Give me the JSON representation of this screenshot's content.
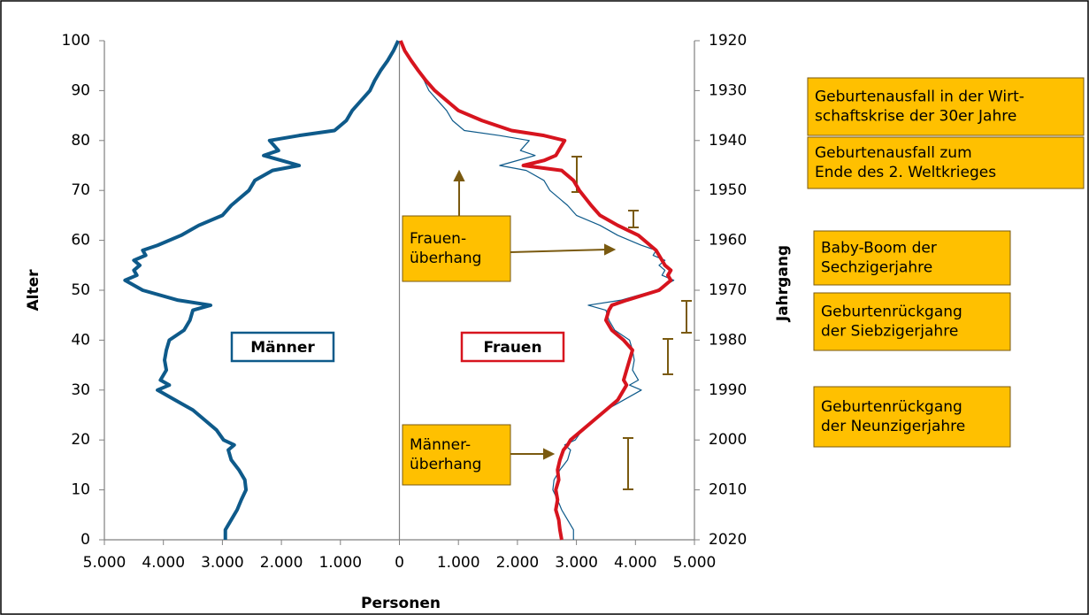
{
  "chart_data": {
    "type": "pyramid",
    "x_label": "Personen",
    "y_label": "Alter",
    "y2_label": "Jahrgang",
    "xlim": [
      -5000,
      5000
    ],
    "xticks": [
      {
        "value": -5000,
        "label": "5.000"
      },
      {
        "value": -4000,
        "label": "4.000"
      },
      {
        "value": -3000,
        "label": "3.000"
      },
      {
        "value": -2000,
        "label": "2.000"
      },
      {
        "value": -1000,
        "label": "1.000"
      },
      0,
      {
        "value": 1000,
        "label": "1.000"
      },
      {
        "value": 2000,
        "label": "2.000"
      },
      {
        "value": 3000,
        "label": "3.000"
      },
      {
        "value": 4000,
        "label": "4.000"
      },
      {
        "value": 5000,
        "label": "5.000"
      }
    ],
    "ylim": [
      0,
      100
    ],
    "yticks": [
      0,
      10,
      20,
      30,
      40,
      50,
      60,
      70,
      80,
      90,
      100
    ],
    "y2lim": [
      2020,
      1920
    ],
    "y2ticks": [
      1920,
      1930,
      1940,
      1950,
      1960,
      1970,
      1980,
      1990,
      2000,
      2010,
      2020
    ],
    "ages": [
      0,
      2,
      4,
      6,
      8,
      10,
      12,
      14,
      16,
      18,
      19,
      20,
      22,
      24,
      26,
      28,
      30,
      31,
      32,
      34,
      36,
      38,
      40,
      42,
      44,
      46,
      47,
      48,
      50,
      52,
      53,
      54,
      55,
      56,
      57,
      58,
      59,
      61,
      63,
      65,
      67,
      70,
      72,
      74,
      75,
      76,
      77,
      78,
      80,
      81,
      82,
      84,
      86,
      88,
      90,
      92,
      94,
      96,
      98,
      100
    ],
    "series": [
      {
        "name": "Männer",
        "color": "#0e5a8a",
        "width": 4,
        "values": [
          -2950,
          -2950,
          -2850,
          -2750,
          -2680,
          -2600,
          -2620,
          -2720,
          -2850,
          -2900,
          -2800,
          -2980,
          -3100,
          -3300,
          -3500,
          -3800,
          -4100,
          -3900,
          -4050,
          -3950,
          -3980,
          -3950,
          -3900,
          -3650,
          -3550,
          -3500,
          -3200,
          -3750,
          -4350,
          -4650,
          -4450,
          -4500,
          -4400,
          -4500,
          -4300,
          -4350,
          -4100,
          -3700,
          -3400,
          -3000,
          -2850,
          -2550,
          -2450,
          -2150,
          -1700,
          -2000,
          -2300,
          -2050,
          -2200,
          -1700,
          -1100,
          -900,
          -800,
          -650,
          -500,
          -420,
          -320,
          -200,
          -100,
          -20
        ]
      },
      {
        "color": "#0e5a8a",
        "width": 1.2,
        "values": [
          2950,
          2950,
          2850,
          2750,
          2680,
          2600,
          2620,
          2720,
          2850,
          2900,
          2800,
          2980,
          3100,
          3300,
          3500,
          3800,
          4100,
          3900,
          4050,
          3950,
          3980,
          3950,
          3900,
          3650,
          3550,
          3500,
          3200,
          3750,
          4350,
          4650,
          4450,
          4500,
          4400,
          4500,
          4300,
          4350,
          4100,
          3700,
          3400,
          3000,
          2850,
          2550,
          2450,
          2150,
          1700,
          2000,
          2300,
          2050,
          2200,
          1700,
          1100,
          900,
          800,
          650,
          500,
          420,
          320,
          200,
          100,
          20
        ]
      },
      {
        "name": "Frauen",
        "color": "#d7141e",
        "width": 4,
        "values": [
          2750,
          2720,
          2700,
          2650,
          2680,
          2650,
          2700,
          2680,
          2720,
          2780,
          2850,
          2900,
          3100,
          3300,
          3500,
          3700,
          3800,
          3850,
          3800,
          3850,
          3900,
          3950,
          3800,
          3600,
          3500,
          3550,
          3600,
          3850,
          4400,
          4600,
          4550,
          4600,
          4500,
          4450,
          4400,
          4350,
          4250,
          4050,
          3700,
          3400,
          3250,
          3050,
          2950,
          2750,
          2100,
          2450,
          2650,
          2700,
          2800,
          2450,
          1900,
          1400,
          1000,
          800,
          600,
          450,
          320,
          200,
          90,
          20
        ]
      }
    ],
    "annotations": [
      {
        "lines": [
          "Geburtenausfall in der Wirt-",
          "schaftskrise der 30er Jahre"
        ]
      },
      {
        "lines": [
          "Geburtenausfall zum",
          "Ende des 2. Weltkrieges"
        ]
      },
      {
        "lines": [
          "Baby-Boom der",
          "Sechzigerjahre"
        ]
      },
      {
        "lines": [
          "Geburtenrückgang",
          "der Siebzigerjahre"
        ]
      },
      {
        "lines": [
          "Geburtenrückgang",
          "der Neunzigerjahre"
        ]
      },
      {
        "lines": [
          "Frauen-",
          "überhang"
        ]
      },
      {
        "lines": [
          "Männer-",
          "überhang"
        ]
      }
    ]
  }
}
